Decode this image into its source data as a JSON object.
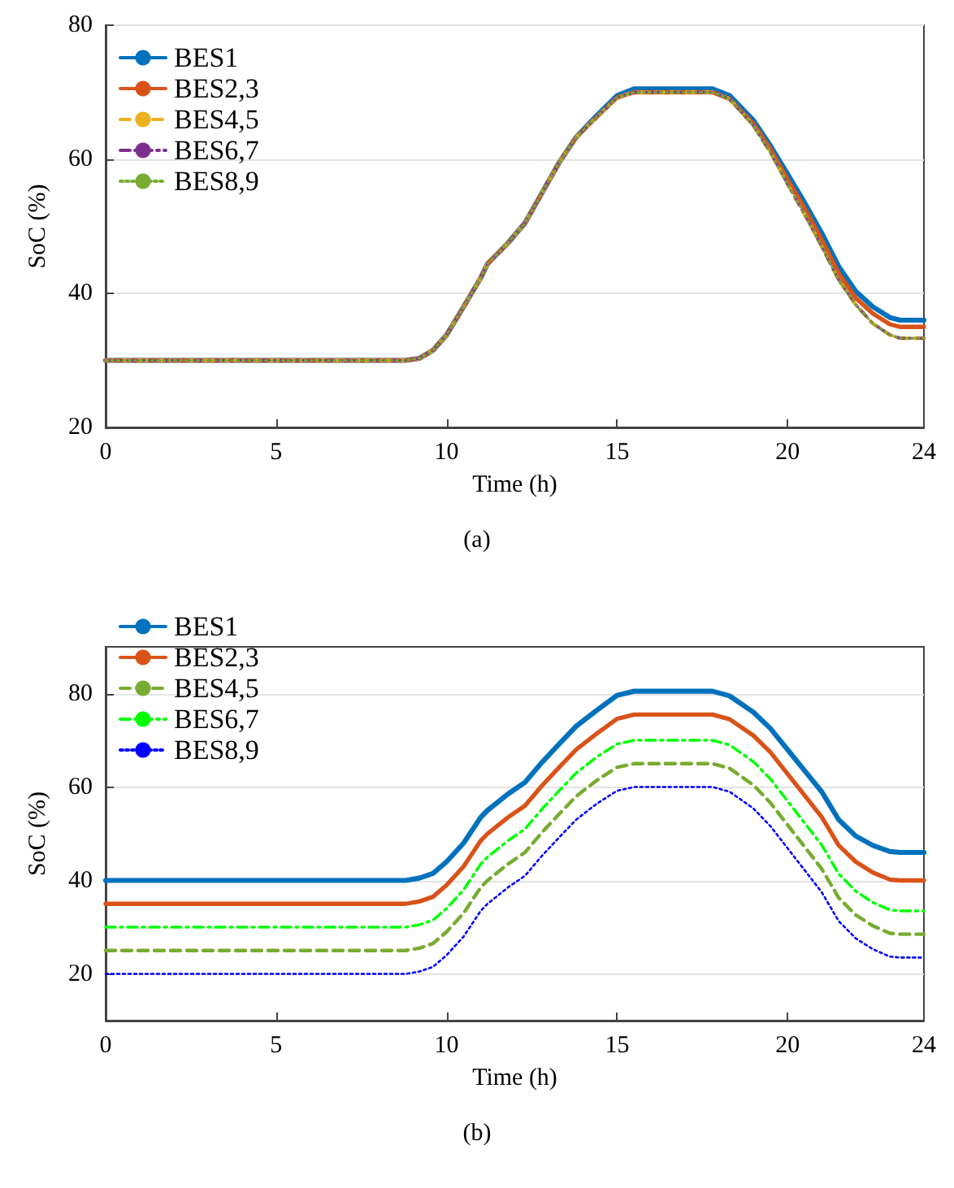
{
  "chart_data": [
    {
      "type": "line",
      "x": [
        0,
        8.8,
        9.2,
        9.6,
        10,
        10.5,
        11,
        11.2,
        11.8,
        12.3,
        12.8,
        13.3,
        13.8,
        14.4,
        15,
        15.5,
        17.8,
        18.3,
        19,
        19.5,
        20,
        20.5,
        21,
        21.5,
        22,
        22.5,
        23,
        23.3,
        24
      ],
      "xlabel": "Time (h)",
      "ylabel": "SoC (%)",
      "xlim": [
        0,
        24
      ],
      "xticks": [
        0,
        5,
        10,
        15,
        20,
        24
      ],
      "ylim": [
        20,
        80
      ],
      "yticks": [
        20,
        40,
        60,
        80
      ],
      "grid": "y",
      "legend": "top left",
      "annotations": [
        "(a)"
      ],
      "series": [
        {
          "name": "BES1",
          "color": "#0072bd",
          "line_style": "solid",
          "values": [
            30,
            30,
            30.3,
            31.5,
            33.8,
            38,
            42.3,
            44.4,
            47.5,
            50.5,
            55,
            59.5,
            63.3,
            66.5,
            69.5,
            70.5,
            70.5,
            69.5,
            65.8,
            62,
            57.8,
            53.5,
            49,
            44,
            40.3,
            38,
            36.4,
            36,
            36
          ]
        },
        {
          "name": "BES2,3",
          "color": "#d95319",
          "line_style": "solid",
          "values": [
            30,
            30,
            30.3,
            31.5,
            33.8,
            38,
            42.3,
            44.4,
            47.5,
            50.5,
            55,
            59.5,
            63.3,
            66.3,
            69.2,
            70,
            70,
            69,
            65.3,
            61.5,
            57,
            52.7,
            48,
            43,
            39.3,
            37,
            35.4,
            35,
            35
          ]
        },
        {
          "name": "BES4,5",
          "color": "#edb120",
          "line_style": "dashed",
          "values": [
            30,
            30,
            30.3,
            31.5,
            33.8,
            38,
            42.3,
            44.4,
            47.5,
            50.5,
            55,
            59.5,
            63.3,
            66.3,
            69.2,
            70,
            70,
            69,
            65,
            61,
            56.3,
            51.8,
            47,
            42,
            38.3,
            35.5,
            33.8,
            33.3,
            33.3
          ]
        },
        {
          "name": "BES6,7",
          "color": "#7e2f8e",
          "line_style": "dashdot",
          "values": [
            30,
            30,
            30.3,
            31.5,
            33.8,
            38,
            42.3,
            44.4,
            47.5,
            50.5,
            55,
            59.5,
            63.3,
            66.3,
            69.2,
            70,
            70,
            69,
            65,
            61,
            56.3,
            51.8,
            47,
            42,
            38.3,
            35.5,
            33.8,
            33.3,
            33.3
          ]
        },
        {
          "name": "BES8,9",
          "color": "#77ac30",
          "line_style": "dotted",
          "values": [
            30,
            30,
            30.3,
            31.5,
            33.8,
            38,
            42.3,
            44.4,
            47.5,
            50.5,
            55,
            59.5,
            63.3,
            66.3,
            69.2,
            70,
            70,
            69,
            65,
            61,
            56.3,
            51.8,
            47,
            42,
            38.3,
            35.5,
            33.8,
            33.3,
            33.3
          ]
        }
      ]
    },
    {
      "type": "line",
      "x": [
        0,
        8.8,
        9.2,
        9.6,
        10,
        10.5,
        11,
        11.2,
        11.8,
        12.3,
        12.8,
        13.3,
        13.8,
        14.4,
        15,
        15.5,
        17.8,
        18.3,
        19,
        19.5,
        20,
        20.5,
        21,
        21.5,
        22,
        22.5,
        23,
        23.3,
        24
      ],
      "xlabel": "Time (h)",
      "ylabel": "SoC (%)",
      "xlim": [
        0,
        24
      ],
      "xticks": [
        0,
        5,
        10,
        15,
        20,
        24
      ],
      "ylim": [
        10,
        90
      ],
      "yticks": [
        20,
        40,
        60,
        80
      ],
      "grid": "y",
      "legend": "top left",
      "annotations": [
        "(b)"
      ],
      "series": [
        {
          "name": "BES1",
          "color": "#0072bd",
          "line_style": "solid",
          "values": [
            40,
            40,
            40.5,
            41.5,
            44,
            48,
            53.5,
            55,
            58.5,
            61,
            65.3,
            69.2,
            73,
            76.4,
            79.6,
            80.5,
            80.5,
            79.5,
            76,
            72.5,
            68,
            63.5,
            59,
            53,
            49.5,
            47.5,
            46.2,
            46,
            46
          ]
        },
        {
          "name": "BES2,3",
          "color": "#d95319",
          "line_style": "solid",
          "values": [
            35,
            35,
            35.5,
            36.5,
            39,
            43,
            48.5,
            50,
            53.5,
            56,
            60.3,
            64.2,
            68,
            71.4,
            74.6,
            75.5,
            75.5,
            74.5,
            71,
            67.4,
            62.8,
            58.2,
            53.6,
            47.5,
            44,
            41.7,
            40.2,
            40,
            40
          ]
        },
        {
          "name": "BES4,5",
          "color": "#77ac30",
          "line_style": "dashed",
          "values": [
            25,
            25,
            25.5,
            26.5,
            29,
            33,
            38.5,
            40,
            43.5,
            46,
            50.3,
            54.2,
            58,
            61.4,
            64.2,
            65,
            65,
            64,
            60.4,
            56.6,
            51.9,
            47.2,
            42.5,
            36.3,
            32.6,
            30.3,
            28.7,
            28.5,
            28.5
          ]
        },
        {
          "name": "BES6,7",
          "color": "#00ff00",
          "line_style": "dashdot",
          "values": [
            30,
            30,
            30.5,
            31.5,
            34,
            38,
            43.5,
            45,
            48.5,
            51,
            55.3,
            59.2,
            63,
            66.4,
            69.2,
            70,
            70,
            69,
            65.4,
            61.7,
            57,
            52.3,
            47.6,
            41.4,
            37.7,
            35.3,
            33.7,
            33.5,
            33.5
          ]
        },
        {
          "name": "BES8,9",
          "color": "#0000ff",
          "line_style": "dotted",
          "values": [
            20,
            20,
            20.5,
            21.5,
            24,
            28,
            33.5,
            35,
            38.5,
            41,
            45.3,
            49.2,
            53,
            56.4,
            59.2,
            60,
            60,
            59,
            55.4,
            51.6,
            46.9,
            42.2,
            37.5,
            31.3,
            27.6,
            25.3,
            23.7,
            23.5,
            23.5
          ]
        }
      ]
    }
  ]
}
